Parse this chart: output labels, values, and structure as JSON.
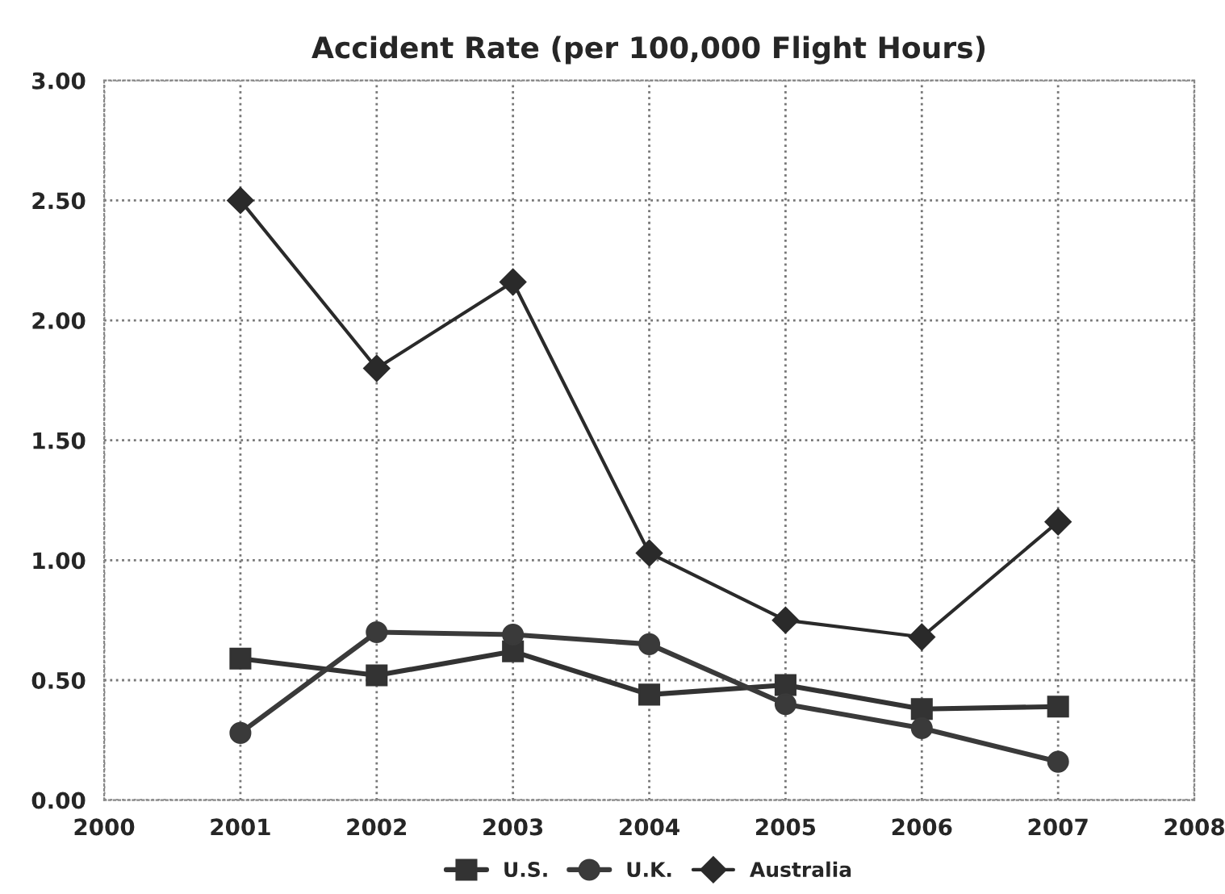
{
  "chart_data": {
    "type": "line",
    "title": "Accident Rate (per 100,000 Flight Hours)",
    "x": [
      2001,
      2002,
      2003,
      2004,
      2005,
      2006,
      2007
    ],
    "series": [
      {
        "name": "U.S.",
        "color": "#333333",
        "marker": "square",
        "values": [
          0.59,
          0.52,
          0.62,
          0.44,
          0.48,
          0.38,
          0.39
        ]
      },
      {
        "name": "U.K.",
        "color": "#3a3a3a",
        "marker": "circle",
        "values": [
          0.28,
          0.7,
          0.69,
          0.65,
          0.4,
          0.3,
          0.16
        ]
      },
      {
        "name": "Australia",
        "color": "#2a2a2a",
        "marker": "diamond",
        "values": [
          2.5,
          1.8,
          2.16,
          1.03,
          0.75,
          0.68,
          1.16
        ]
      }
    ],
    "xlim": [
      2000,
      2008
    ],
    "xticks": [
      2000,
      2001,
      2002,
      2003,
      2004,
      2005,
      2006,
      2007,
      2008
    ],
    "ylim": [
      0,
      3
    ],
    "yticks": [
      {
        "value": 0,
        "label": "0.00"
      },
      {
        "value": 0.5,
        "label": "0.50"
      },
      {
        "value": 1,
        "label": "1.00"
      },
      {
        "value": 1.5,
        "label": "1.50"
      },
      {
        "value": 2,
        "label": "2.00"
      },
      {
        "value": 2.5,
        "label": "2.50"
      },
      {
        "value": 3,
        "label": "3.00"
      }
    ],
    "grid": true,
    "legend": "bottom",
    "line_style": "solid"
  }
}
